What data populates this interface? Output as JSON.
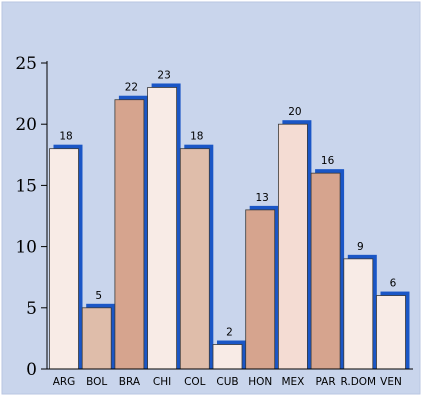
{
  "chart_data": {
    "type": "bar",
    "title": "",
    "xlabel": "",
    "ylabel": "",
    "categories": [
      "ARG",
      "BOL",
      "BRA",
      "CHI",
      "COL",
      "CUB",
      "HON",
      "MEX",
      "PAR",
      "R.DOM",
      "VEN"
    ],
    "values": [
      18,
      5,
      22,
      23,
      18,
      2,
      13,
      20,
      16,
      9,
      6
    ],
    "ylim": [
      0,
      25
    ],
    "yticks": [
      0,
      5,
      10,
      15,
      20,
      25
    ],
    "grid": false,
    "legend": "none",
    "bar_fills": [
      "#f8ebe6",
      "#dfbdaa",
      "#d6a48e",
      "#f8ebe6",
      "#dfbdaa",
      "#f8ebe6",
      "#d6a48e",
      "#f4dcd3",
      "#d6a48e",
      "#f8ebe6",
      "#f8ebe6"
    ]
  },
  "colors": {
    "panel_background": "#c9d5ec",
    "bar_shadow": "#1a56c6",
    "bar_outline": "#3a3a3a",
    "axis": "#000000"
  }
}
